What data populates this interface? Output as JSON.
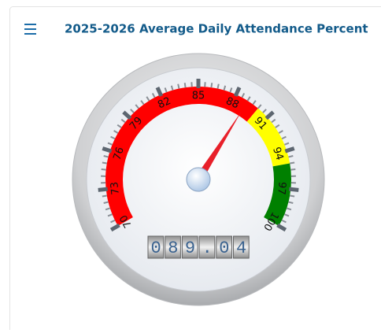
{
  "chart_data": {
    "type": "gauge",
    "title": "2025-2026 Average Daily Attendance Percent",
    "value": 89.04,
    "value_label": "089.04",
    "ylim": [
      70,
      100
    ],
    "yticks": [
      70,
      73,
      76,
      79,
      82,
      85,
      88,
      91,
      94,
      97,
      100
    ],
    "bands": [
      {
        "from": 70,
        "to": 90,
        "color": "#ff0000"
      },
      {
        "from": 90,
        "to": 95,
        "color": "#ffff00"
      },
      {
        "from": 95,
        "to": 100,
        "color": "#008000"
      }
    ],
    "needle_color": "#e8202a"
  }
}
